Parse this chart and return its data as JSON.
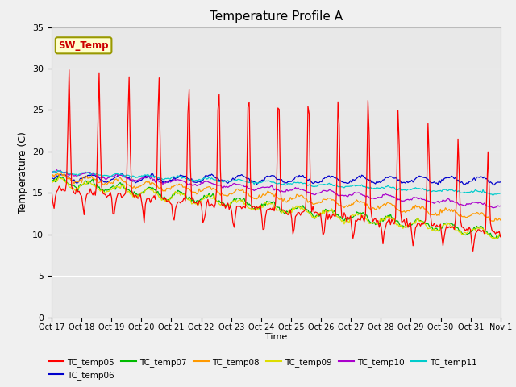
{
  "title": "Temperature Profile A",
  "ylabel": "Temperature (C)",
  "xlabel": "Time",
  "ylim": [
    0,
    35
  ],
  "fig_bg_color": "#f0f0f0",
  "plot_bg_color": "#e8e8e8",
  "x_tick_labels": [
    "Oct 17",
    "Oct 18",
    "Oct 19",
    "Oct 20",
    "Oct 21",
    "Oct 22",
    "Oct 23",
    "Oct 24",
    "Oct 25",
    "Oct 26",
    "Oct 27",
    "Oct 28",
    "Oct 29",
    "Oct 30",
    "Oct 31",
    "Nov 1"
  ],
  "series_colors": {
    "TC_temp05": "#ff0000",
    "TC_temp06": "#0000cc",
    "TC_temp07": "#00bb00",
    "TC_temp08": "#ff9900",
    "TC_temp09": "#dddd00",
    "TC_temp10": "#aa00cc",
    "TC_temp11": "#00cccc"
  },
  "sw_temp_box_color": "#ffffcc",
  "sw_temp_text_color": "#cc0000",
  "sw_temp_border_color": "#999900",
  "grid_color": "#ffffff",
  "n_days": 15
}
